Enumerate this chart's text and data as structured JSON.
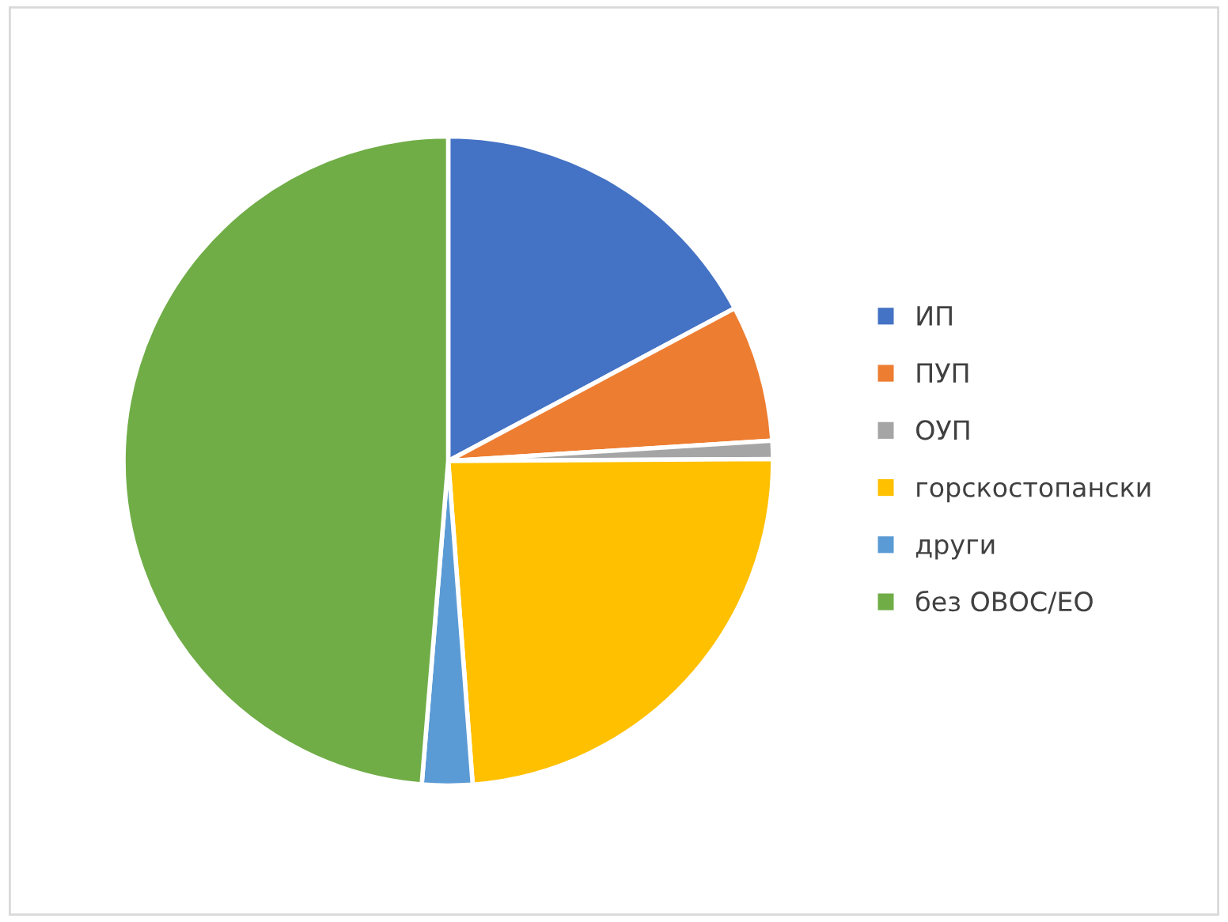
{
  "chart_data": {
    "type": "pie",
    "categories": [
      "ИП",
      "ПУП",
      "ОУП",
      "горскостопански",
      "други",
      "без ОВОС/ЕО"
    ],
    "values": [
      17.2,
      6.8,
      0.9,
      23.9,
      2.5,
      48.7
    ],
    "colors": [
      "#4472c4",
      "#ed7d31",
      "#a5a5a5",
      "#ffc000",
      "#5b9bd5",
      "#70ad47"
    ],
    "legend": "right"
  }
}
